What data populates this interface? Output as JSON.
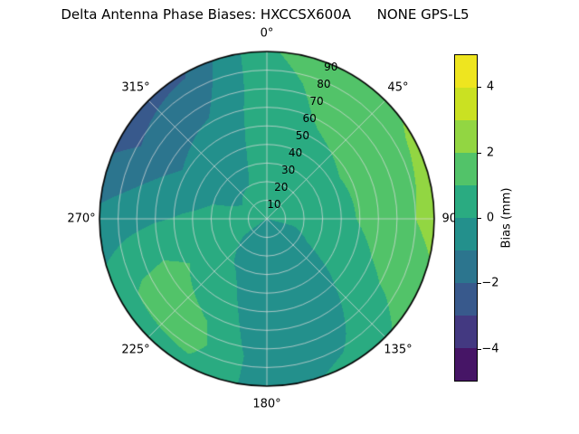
{
  "chart_data": {
    "type": "heatmap",
    "projection": "polar",
    "title": "Delta Antenna Phase Biases: HXCCSX600A      NONE GPS-L5",
    "angular_ticks": [
      "0°",
      "45°",
      "90°",
      "135°",
      "180°",
      "225°",
      "270°",
      "315°"
    ],
    "radial_ticks": [
      {
        "v": 10,
        "label": "10"
      },
      {
        "v": 20,
        "label": "20"
      },
      {
        "v": 30,
        "label": "30"
      },
      {
        "v": 40,
        "label": "40"
      },
      {
        "v": 50,
        "label": "50"
      },
      {
        "v": 60,
        "label": "60"
      },
      {
        "v": 70,
        "label": "70"
      },
      {
        "v": 80,
        "label": "80"
      },
      {
        "v": 90,
        "label": "90"
      }
    ],
    "radial_range": [
      0,
      90
    ],
    "grid_on": true,
    "levels": [
      -5,
      -4,
      -3,
      -2,
      -1,
      0,
      1,
      2,
      3,
      4,
      5
    ],
    "colormap": {
      "name": "viridis",
      "stops": [
        "#440154",
        "#482878",
        "#3e4989",
        "#31688e",
        "#26828e",
        "#1f9e89",
        "#35b779",
        "#6ece58",
        "#b5de2b",
        "#dfe318",
        "#fde725"
      ]
    },
    "colorbar": {
      "label": "Bias (mm)",
      "vmin": -5,
      "vmax": 5,
      "ticks": [
        {
          "v": 4,
          "label": "4"
        },
        {
          "v": 2,
          "label": "2"
        },
        {
          "v": 0,
          "label": "0"
        },
        {
          "v": -2,
          "label": "−2"
        },
        {
          "v": -4,
          "label": "−4"
        }
      ]
    },
    "grid": {
      "azimuth_deg": [
        0,
        30,
        60,
        90,
        120,
        150,
        180,
        210,
        240,
        270,
        300,
        330
      ],
      "zenith_deg": [
        0,
        15,
        30,
        45,
        60,
        75,
        90
      ],
      "bias_mm": [
        [
          0.0,
          0.2,
          0.4,
          0.5,
          0.6,
          0.7,
          0.9
        ],
        [
          0.0,
          0.3,
          0.5,
          0.8,
          1.1,
          1.3,
          1.6
        ],
        [
          0.0,
          0.3,
          0.6,
          1.0,
          1.4,
          1.7,
          2.1
        ],
        [
          0.0,
          0.2,
          0.5,
          0.9,
          1.4,
          1.8,
          2.4
        ],
        [
          0.0,
          -0.2,
          0.1,
          0.4,
          0.8,
          1.1,
          1.5
        ],
        [
          -0.1,
          -0.5,
          -0.8,
          -0.7,
          -0.5,
          -0.2,
          0.2
        ],
        [
          -0.2,
          -0.6,
          -0.9,
          -0.9,
          -0.8,
          -0.6,
          -0.4
        ],
        [
          -0.1,
          -0.4,
          -0.1,
          0.4,
          0.9,
          1.3,
          0.8
        ],
        [
          0.0,
          0.1,
          0.4,
          0.9,
          1.4,
          1.2,
          0.6
        ],
        [
          0.0,
          0.1,
          0.2,
          0.1,
          -0.1,
          -0.4,
          -0.7
        ],
        [
          0.0,
          0.0,
          -0.2,
          -0.7,
          -1.3,
          -1.9,
          -2.4
        ],
        [
          0.0,
          0.1,
          -0.2,
          -0.5,
          -0.9,
          -1.5,
          -2.1
        ]
      ]
    },
    "axis_colors": {
      "grid_line": "#dcdcdc",
      "outline": "#000000",
      "text": "#000000"
    }
  }
}
